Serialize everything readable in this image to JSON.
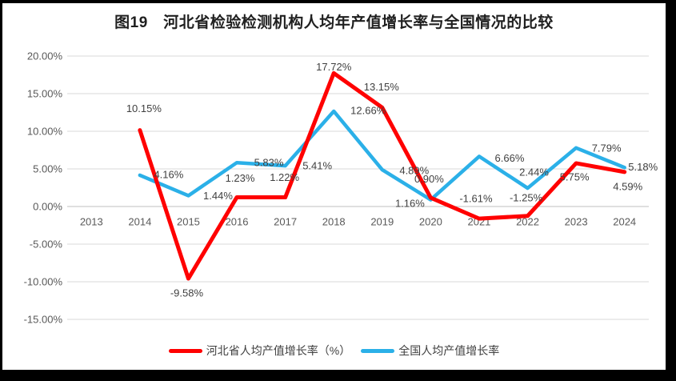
{
  "title": "图19　河北省检验检测机构人均年产值增长率与全国情况的比较",
  "colors": {
    "hebei_line": "#ff0000",
    "national_line": "#2bb0e8",
    "gridline": "#d9d9d9",
    "axis_line": "#bfbfbf",
    "tick_text": "#595959",
    "label_text": "#404040",
    "frame": "#000000",
    "background": "#ffffff"
  },
  "chart_data": {
    "type": "line",
    "title": "图19　河北省检验检测机构人均年产值增长率与全国情况的比较",
    "categories": [
      "2013",
      "2014",
      "2015",
      "2016",
      "2017",
      "2018",
      "2019",
      "2020",
      "2021",
      "2022",
      "2023",
      "2024"
    ],
    "ylim": [
      -15,
      20
    ],
    "ytick_step": 5,
    "ytick_labels": [
      "20.00%",
      "15.00%",
      "10.00%",
      "5.00%",
      "0.00%",
      "-5.00%",
      "-10.00%",
      "-15.00%"
    ],
    "grid": true,
    "legend_position": "bottom",
    "series": [
      {
        "id": "national",
        "name": "全国人均产值增长率",
        "color": "#2bb0e8",
        "stroke_width": 4.5,
        "start_index": 1,
        "values": [
          4.16,
          1.44,
          5.83,
          5.41,
          12.66,
          4.89,
          0.9,
          6.66,
          2.44,
          7.79,
          5.18
        ],
        "labels": [
          "4.16%",
          "1.44%",
          "5.83%",
          "5.41%",
          "12.66%",
          "4.89%",
          "0.90%",
          "6.66%",
          "2.44%",
          "7.79%",
          "5.18%"
        ],
        "label_offsets": [
          [
            36,
            -1
          ],
          [
            37,
            0
          ],
          [
            40,
            0
          ],
          [
            40,
            0
          ],
          [
            43,
            -1
          ],
          [
            40,
            1
          ],
          [
            -2,
            -26
          ],
          [
            38,
            2
          ],
          [
            8,
            -20
          ],
          [
            38,
            0
          ],
          [
            23,
            -1
          ]
        ]
      },
      {
        "id": "hebei",
        "name": "河北省人均产值增长率（%）",
        "color": "#ff0000",
        "stroke_width": 5,
        "start_index": 1,
        "values": [
          10.15,
          -9.58,
          1.23,
          1.22,
          17.72,
          13.15,
          1.16,
          -1.61,
          -1.25,
          5.75,
          4.59
        ],
        "labels": [
          "10.15%",
          "-9.58%",
          "1.23%",
          "1.22%",
          "17.72%",
          "13.15%",
          "1.16%",
          "-1.61%",
          "-1.25%",
          "5.75%",
          "4.59%"
        ],
        "label_offsets": [
          [
            5,
            -27
          ],
          [
            -2,
            18
          ],
          [
            4,
            -24
          ],
          [
            -1,
            -25
          ],
          [
            0,
            -8
          ],
          [
            -1,
            -26
          ],
          [
            -26,
            7
          ],
          [
            -4,
            -25
          ],
          [
            -2,
            -23
          ],
          [
            -2,
            17
          ],
          [
            4,
            18
          ]
        ]
      }
    ],
    "legend_order": [
      "hebei",
      "national"
    ]
  },
  "legend": {
    "hebei_label": "河北省人均产值增长率（%）",
    "national_label": "全国人均产值增长率"
  }
}
